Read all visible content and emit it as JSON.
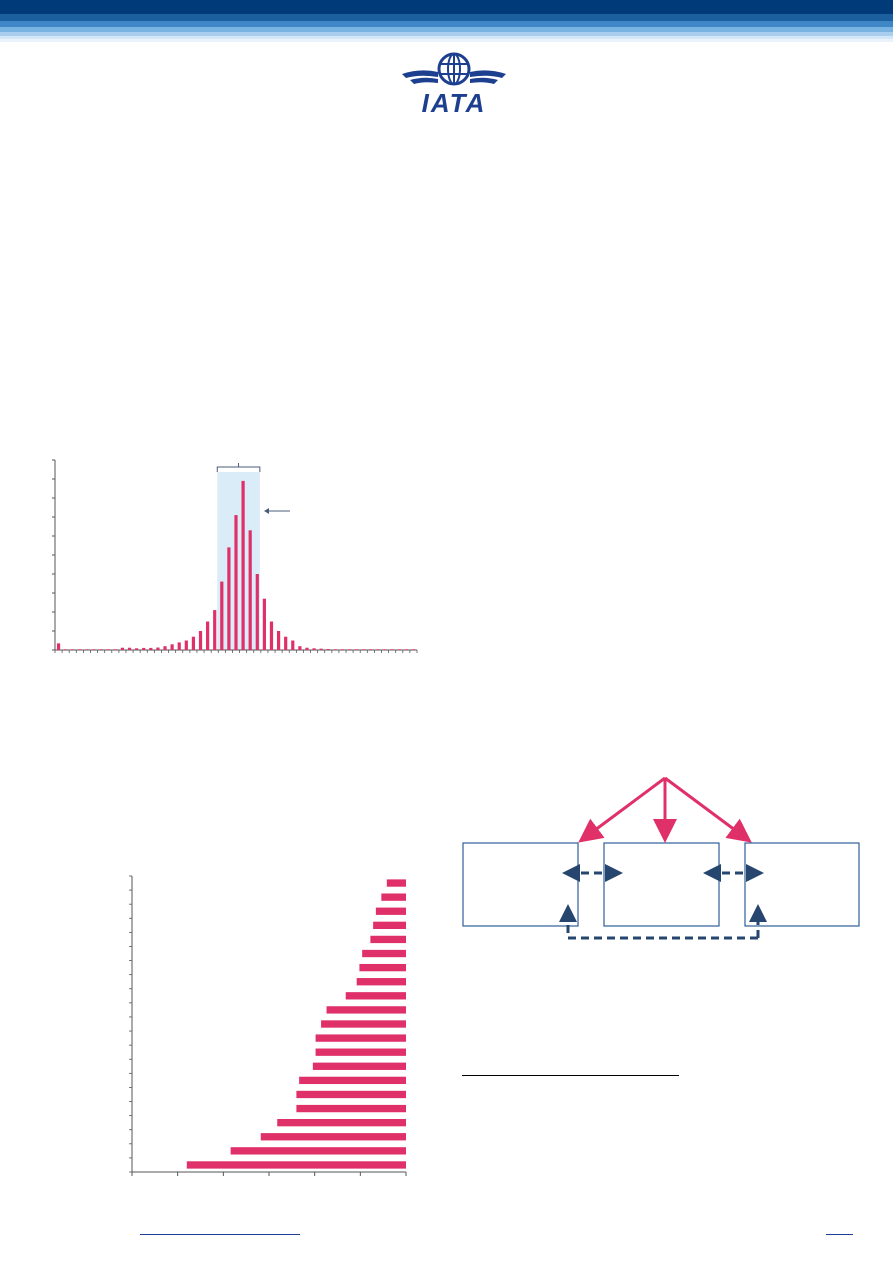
{
  "header": {
    "logo_text": "IATA",
    "colors": {
      "navy": "#003a78",
      "mid_blue": "#2f74b7",
      "light_blue": "#7fb4e0",
      "pale_blue": "#cfe4f6"
    }
  },
  "chart_histogram": {
    "type": "bar",
    "color": "#e0306a",
    "highlight_color": "#d9ecf8",
    "bracket_color": "#4a5d7a",
    "values": [
      0.035,
      0.004,
      0.004,
      0.004,
      0.004,
      0.004,
      0.004,
      0.004,
      0.004,
      0.012,
      0.012,
      0.009,
      0.011,
      0.011,
      0.013,
      0.02,
      0.03,
      0.04,
      0.05,
      0.07,
      0.1,
      0.15,
      0.21,
      0.36,
      0.54,
      0.71,
      0.89,
      0.63,
      0.4,
      0.27,
      0.15,
      0.1,
      0.07,
      0.05,
      0.02,
      0.012,
      0.009,
      0.007,
      0.005,
      0.004,
      0.004,
      0.004,
      0.004,
      0.004,
      0.004,
      0.004,
      0.004,
      0.004,
      0.004,
      0.004,
      0.004
    ],
    "highlight_range": [
      23,
      28
    ],
    "ylim": [
      0,
      1
    ]
  },
  "chart_horizontal": {
    "type": "bar",
    "orientation": "horizontal",
    "color": "#e0306a",
    "values": [
      0.07,
      0.09,
      0.11,
      0.12,
      0.13,
      0.16,
      0.17,
      0.18,
      0.22,
      0.29,
      0.31,
      0.33,
      0.33,
      0.34,
      0.39,
      0.4,
      0.4,
      0.47,
      0.53,
      0.64,
      0.8
    ],
    "xlim": [
      0,
      1
    ]
  },
  "diagram": {
    "pink": "#e0306a",
    "navy": "#26466f",
    "box_border": "#2f5f9a"
  },
  "footer": {
    "line_color": "#1f3f99"
  }
}
